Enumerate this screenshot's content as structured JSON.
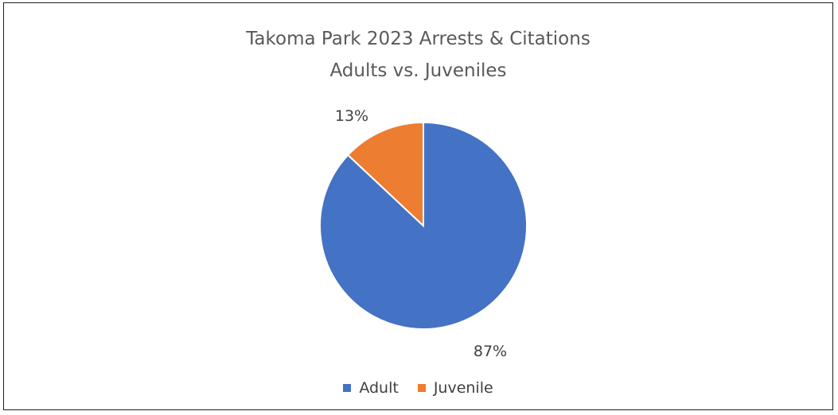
{
  "chart_data": {
    "type": "pie",
    "title": "Takoma Park 2023 Arrests & Citations",
    "subtitle": "Adults vs. Juveniles",
    "categories": [
      "Adult",
      "Juvenile"
    ],
    "values": [
      87,
      13
    ],
    "value_labels": [
      "87%",
      "13%"
    ],
    "colors": [
      "#4472C4",
      "#ED7D31"
    ],
    "legend_position": "bottom",
    "start_angle": "top, clockwise"
  }
}
